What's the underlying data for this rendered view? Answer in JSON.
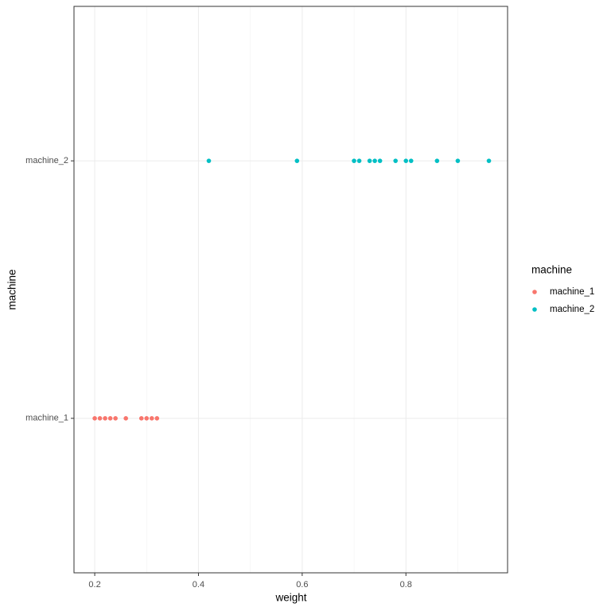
{
  "chart_data": {
    "type": "strip",
    "x_label": "weight",
    "y_label": "machine",
    "categories": [
      "machine_1",
      "machine_2"
    ],
    "series": [
      {
        "name": "machine_1",
        "color": "#f8766d",
        "values": [
          0.2,
          0.21,
          0.22,
          0.23,
          0.24,
          0.26,
          0.29,
          0.3,
          0.31,
          0.32
        ]
      },
      {
        "name": "machine_2",
        "color": "#00bfc4",
        "values": [
          0.42,
          0.59,
          0.7,
          0.71,
          0.73,
          0.74,
          0.75,
          0.78,
          0.8,
          0.81,
          0.86,
          0.9,
          0.96
        ]
      }
    ],
    "xlim": [
      0.16,
      0.996
    ],
    "xticks": [
      0.2,
      0.4,
      0.6,
      0.8
    ],
    "x_minor_grid": [
      0.3,
      0.5,
      0.7,
      0.9
    ],
    "grid": true,
    "legend_title": "machine",
    "legend_position": "right"
  }
}
